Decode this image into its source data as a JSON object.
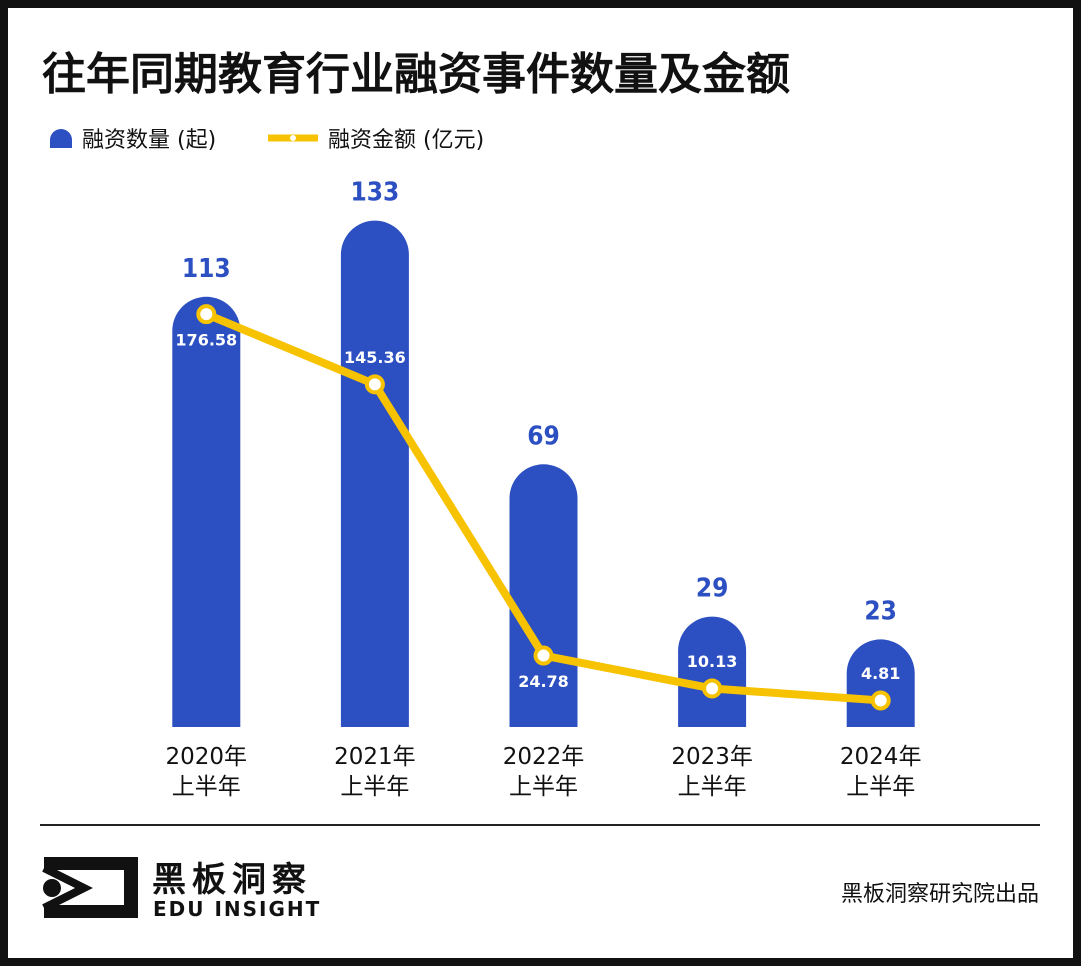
{
  "chart_data": {
    "type": "bar",
    "title": "往年同期教育行业融资事件数量及金额",
    "categories": [
      "2020年\n上半年",
      "2021年\n上半年",
      "2022年\n上半年",
      "2023年\n上半年",
      "2024年\n上半年"
    ],
    "series": [
      {
        "name": "融资数量 (起)",
        "type": "bar",
        "color": "#2c50c2",
        "values": [
          113,
          133,
          69,
          29,
          23
        ]
      },
      {
        "name": "融资金额 (亿元)",
        "type": "line",
        "axis": "y2",
        "color": "#f7c200",
        "values": [
          176.58,
          145.36,
          24.78,
          10.13,
          4.81
        ]
      }
    ],
    "ylim": [
      0,
      140
    ],
    "y2lim": [
      -7,
      230
    ],
    "grid": false,
    "legend": "top-left"
  },
  "footer": {
    "brand": "黑板洞察",
    "brand_en": "EDU INSIGHT",
    "credit": "黑板洞察研究院出品"
  }
}
